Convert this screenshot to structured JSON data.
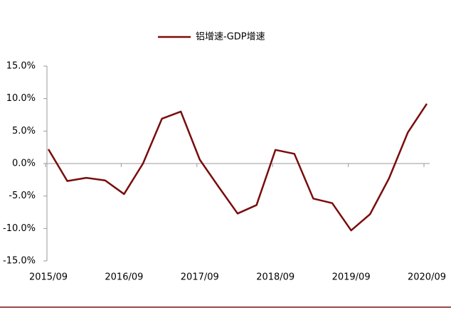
{
  "chart_data": {
    "type": "line",
    "categories": [
      "2015/09",
      null,
      null,
      null,
      "2016/09",
      null,
      null,
      null,
      "2017/09",
      null,
      null,
      null,
      "2018/09",
      null,
      null,
      null,
      "2019/09",
      null,
      null,
      null,
      "2020/09"
    ],
    "series": [
      {
        "name": "铝增速-GDP增速",
        "color": "#7a0c0c",
        "values": [
          2.2,
          -2.7,
          -2.2,
          -2.6,
          -4.7,
          0.0,
          6.9,
          8.0,
          0.6,
          -3.6,
          -7.7,
          -6.4,
          2.1,
          1.5,
          -5.4,
          -6.1,
          -10.3,
          -7.8,
          -2.3,
          4.8,
          9.2
        ]
      }
    ],
    "ylim": [
      -15,
      15
    ],
    "yticks": [
      {
        "value": -15,
        "label": "-15.0%"
      },
      {
        "value": -10,
        "label": "-10.0%"
      },
      {
        "value": -5,
        "label": "-5.0%"
      },
      {
        "value": 0,
        "label": "0.0%"
      },
      {
        "value": 5,
        "label": "5.0%"
      },
      {
        "value": 10,
        "label": "10.0%"
      },
      {
        "value": 15,
        "label": "15.0%"
      }
    ],
    "legend": "top"
  }
}
